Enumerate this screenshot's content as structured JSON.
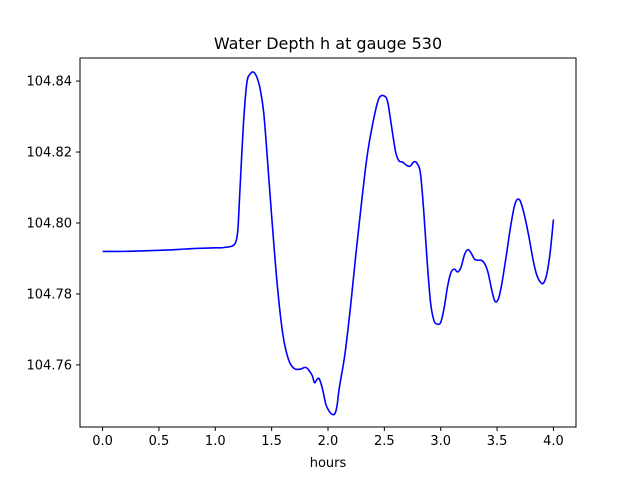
{
  "chart_data": {
    "type": "line",
    "title": "Water Depth h at gauge 530",
    "xlabel": "hours",
    "ylabel": "",
    "xlim": [
      -0.2,
      4.2
    ],
    "ylim": [
      104.7425,
      104.8465
    ],
    "xticks": [
      0.0,
      0.5,
      1.0,
      1.5,
      2.0,
      2.5,
      3.0,
      3.5,
      4.0
    ],
    "xtick_labels": [
      "0.0",
      "0.5",
      "1.0",
      "1.5",
      "2.0",
      "2.5",
      "3.0",
      "3.5",
      "4.0"
    ],
    "yticks": [
      104.76,
      104.78,
      104.8,
      104.82,
      104.84
    ],
    "ytick_labels": [
      "104.76",
      "104.78",
      "104.80",
      "104.82",
      "104.84"
    ],
    "grid": false,
    "series": [
      {
        "color": "#0000ff",
        "x": [
          0.0,
          0.2,
          0.4,
          0.6,
          0.7,
          0.8,
          0.9,
          1.0,
          1.05,
          1.1,
          1.15,
          1.18,
          1.2,
          1.22,
          1.25,
          1.28,
          1.31,
          1.34,
          1.37,
          1.4,
          1.43,
          1.46,
          1.5,
          1.55,
          1.6,
          1.65,
          1.7,
          1.75,
          1.8,
          1.83,
          1.86,
          1.88,
          1.9,
          1.92,
          1.94,
          1.96,
          1.98,
          2.0,
          2.03,
          2.06,
          2.08,
          2.1,
          2.15,
          2.2,
          2.25,
          2.3,
          2.35,
          2.4,
          2.45,
          2.5,
          2.53,
          2.56,
          2.6,
          2.63,
          2.66,
          2.7,
          2.73,
          2.76,
          2.79,
          2.82,
          2.85,
          2.88,
          2.91,
          2.94,
          2.97,
          3.0,
          3.03,
          3.06,
          3.09,
          3.12,
          3.15,
          3.18,
          3.21,
          3.24,
          3.27,
          3.3,
          3.33,
          3.36,
          3.39,
          3.42,
          3.45,
          3.48,
          3.51,
          3.54,
          3.58,
          3.62,
          3.66,
          3.7,
          3.74,
          3.78,
          3.82,
          3.85,
          3.88,
          3.91,
          3.94,
          3.97,
          4.0
        ],
        "y": [
          104.792,
          104.792,
          104.7922,
          104.7924,
          104.7926,
          104.7928,
          104.7929,
          104.793,
          104.793,
          104.7932,
          104.7935,
          104.7945,
          104.798,
          104.81,
          104.828,
          104.8395,
          104.842,
          104.8425,
          104.841,
          104.8375,
          104.831,
          104.819,
          104.802,
          104.7825,
          104.7685,
          104.7615,
          104.759,
          104.7588,
          104.7593,
          104.7585,
          104.757,
          104.755,
          104.7558,
          104.7562,
          104.7545,
          104.752,
          104.749,
          104.7475,
          104.7462,
          104.7462,
          104.7485,
          104.7535,
          104.763,
          104.7765,
          104.792,
          104.8065,
          104.8195,
          104.8285,
          104.835,
          104.8358,
          104.834,
          104.828,
          104.82,
          104.8175,
          104.8172,
          104.8162,
          104.816,
          104.8172,
          104.8168,
          104.814,
          104.803,
          104.789,
          104.7775,
          104.7725,
          104.7715,
          104.772,
          104.776,
          104.782,
          104.786,
          104.787,
          104.7862,
          104.7875,
          104.791,
          104.7925,
          104.7915,
          104.7898,
          104.7895,
          104.7895,
          104.7885,
          104.786,
          104.7815,
          104.778,
          104.7785,
          104.7825,
          104.7905,
          104.799,
          104.8055,
          104.8065,
          104.8025,
          104.7965,
          104.7895,
          104.7855,
          104.7835,
          104.783,
          104.7855,
          104.7915,
          104.801
        ]
      }
    ]
  }
}
